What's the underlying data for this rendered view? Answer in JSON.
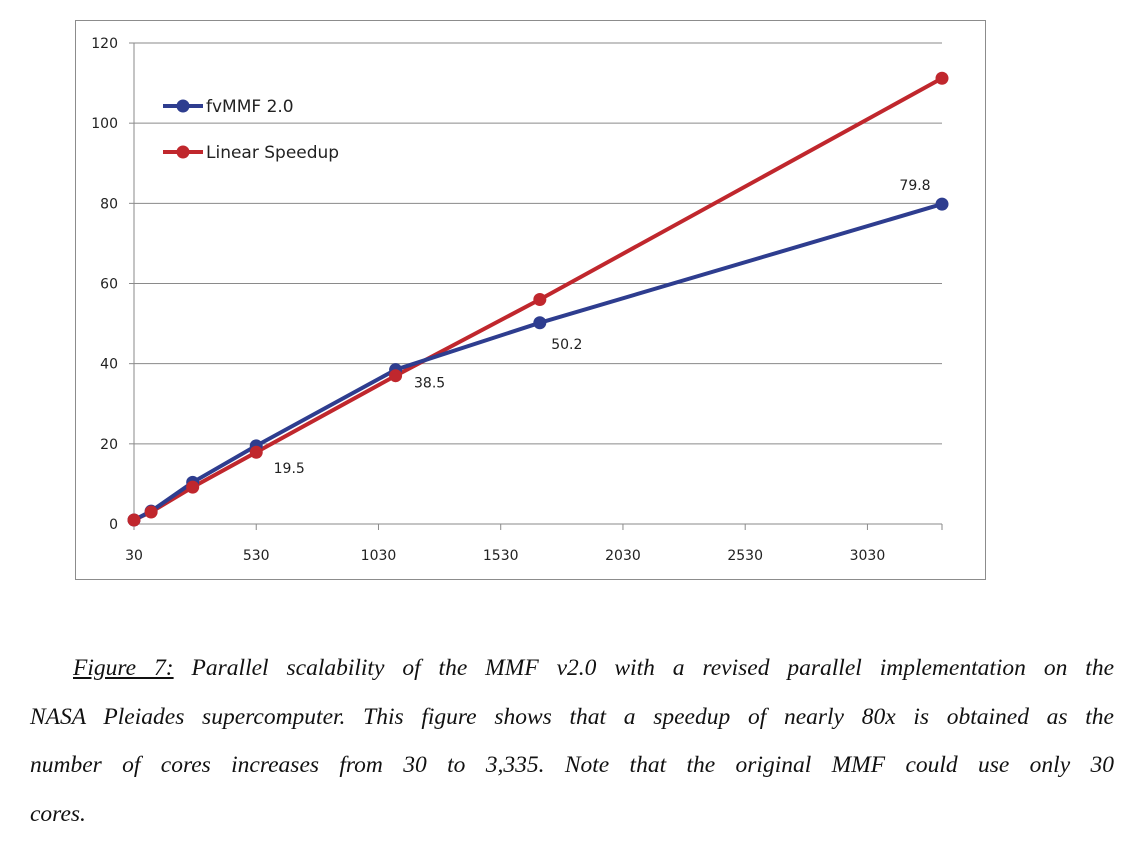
{
  "chart_data": {
    "type": "line",
    "x_ticks": [
      30,
      530,
      1030,
      1530,
      2030,
      2530,
      3030
    ],
    "y_ticks": [
      0,
      20,
      40,
      60,
      80,
      100,
      120
    ],
    "xlim": [
      30,
      3335
    ],
    "ylim": [
      0,
      120
    ],
    "grid": "horizontal",
    "legend_position": "top-left",
    "series": [
      {
        "name": "fvMMF 2.0",
        "color": "#2e3d8f",
        "points": [
          [
            30,
            1
          ],
          [
            100,
            3.2
          ],
          [
            270,
            10.4
          ],
          [
            530,
            19.5
          ],
          [
            1100,
            38.5
          ],
          [
            1690,
            50.2
          ],
          [
            3335,
            79.8
          ]
        ]
      },
      {
        "name": "Linear Speedup",
        "color": "#c0272d",
        "points": [
          [
            30,
            1
          ],
          [
            100,
            3
          ],
          [
            270,
            9.2
          ],
          [
            530,
            17.9
          ],
          [
            1100,
            37
          ],
          [
            1690,
            56
          ],
          [
            3335,
            111.2
          ]
        ]
      }
    ],
    "annotations": [
      {
        "x": 530,
        "y": 19.5,
        "text": "19.5"
      },
      {
        "x": 1100,
        "y": 38.5,
        "text": "38.5"
      },
      {
        "x": 1690,
        "y": 50.2,
        "text": "50.2"
      },
      {
        "x": 3335,
        "y": 79.8,
        "text": "79.8"
      }
    ]
  },
  "caption": {
    "label": "Figure 7:",
    "line1": " Parallel scalability of the MMF v2.0 with a revised parallel implementation on the",
    "line2": "NASA Pleiades supercomputer. This figure shows that a speedup of nearly 80x is obtained as the",
    "line3": "number of cores increases from 30 to 3,335. Note that the original MMF could use only 30",
    "line4": "cores."
  }
}
